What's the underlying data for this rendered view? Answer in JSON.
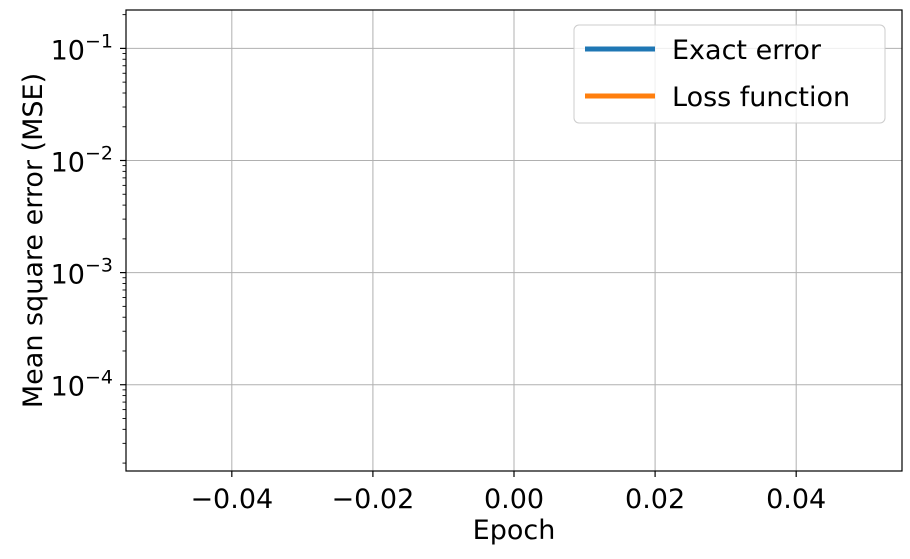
{
  "chart_data": {
    "type": "line",
    "title": "",
    "xlabel": "Epoch",
    "ylabel": "Mean square error (MSE)",
    "xscale": "linear",
    "yscale": "log",
    "xlim": [
      -0.055,
      0.055
    ],
    "ylim": [
      1.7e-05,
      0.22
    ],
    "x_ticks": [
      -0.04,
      -0.02,
      0.0,
      0.02,
      0.04
    ],
    "x_tick_labels": [
      "−0.04",
      "−0.02",
      "0.00",
      "0.02",
      "0.04"
    ],
    "y_ticks": [
      0.0001,
      0.001,
      0.01,
      0.1
    ],
    "y_tick_labels": [
      {
        "base": "10",
        "exp": "−4"
      },
      {
        "base": "10",
        "exp": "−3"
      },
      {
        "base": "10",
        "exp": "−2"
      },
      {
        "base": "10",
        "exp": "−1"
      }
    ],
    "grid": true,
    "legend_position": "top-right",
    "series": [
      {
        "name": "Exact error",
        "color": "#1f77b4",
        "x": [],
        "y": []
      },
      {
        "name": "Loss function",
        "color": "#ff7f0e",
        "x": [],
        "y": []
      }
    ]
  }
}
